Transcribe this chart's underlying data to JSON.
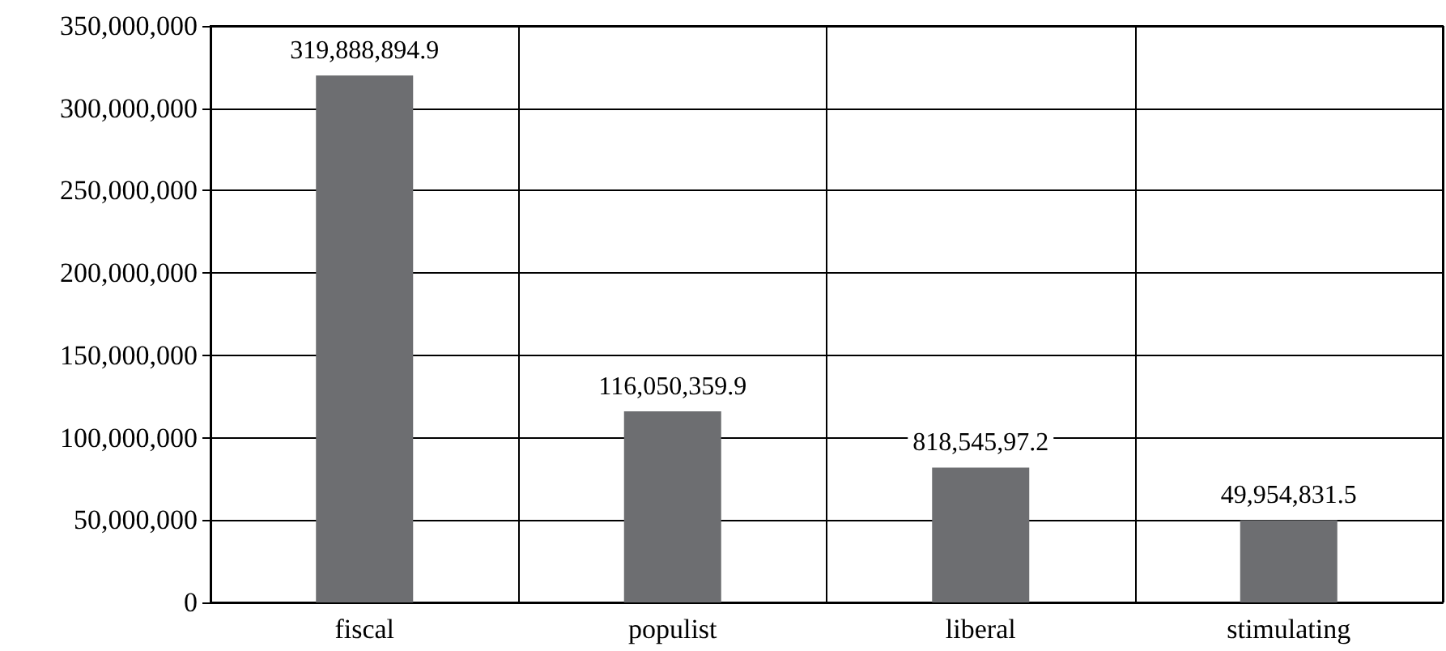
{
  "chart_data": {
    "type": "bar",
    "categories": [
      "fiscal",
      "populist",
      "liberal",
      "stimulating"
    ],
    "values": [
      319888894.9,
      116050359.9,
      81854597.2,
      49954831.5
    ],
    "value_labels": [
      "319,888,894.9",
      "116,050,359.9",
      "818,545,97.2",
      "49,954,831.5"
    ],
    "color": "#6d6e71",
    "ylim": [
      0,
      350000000
    ],
    "yticks": [
      0,
      {
        "value": 50000000,
        "label": "50,000,000"
      },
      {
        "value": 100000000,
        "label": "100,000,000"
      },
      {
        "value": 150000000,
        "label": "150,000,000"
      },
      {
        "value": 200000000,
        "label": "200,000,000"
      },
      {
        "value": 250000000,
        "label": "250,000,000"
      },
      {
        "value": 300000000,
        "label": "300,000,000"
      },
      {
        "value": 350000000,
        "label": "350,000,000"
      }
    ],
    "grid": true
  }
}
